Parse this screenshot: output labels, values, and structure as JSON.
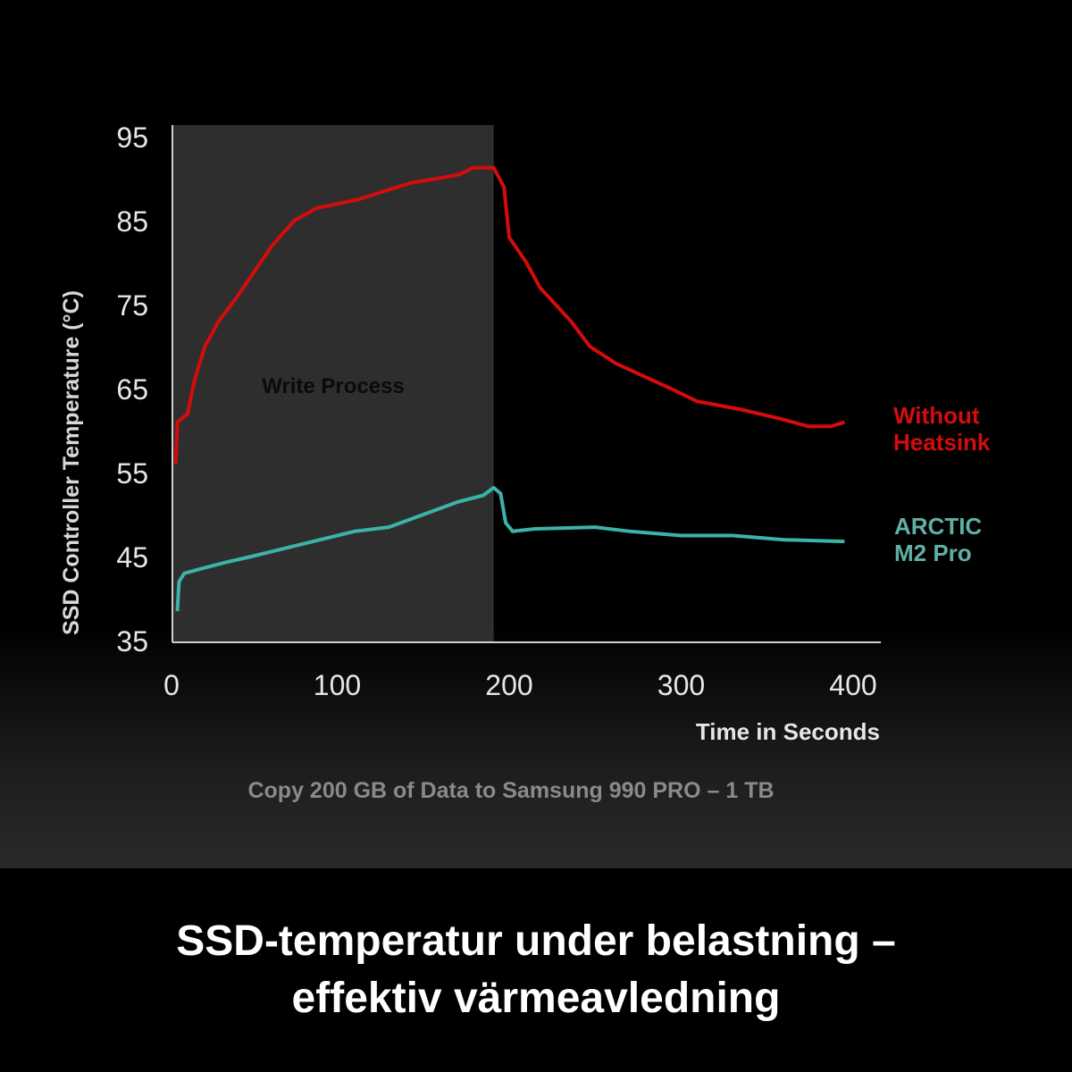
{
  "chart_data": {
    "type": "line",
    "xlabel": "Time in Seconds",
    "ylabel": "SSD Controller Temperature (°C)",
    "subtitle": "Copy 200 GB of Data to Samsung 990 PRO  – 1 TB",
    "xlim": [
      0,
      400
    ],
    "ylim": [
      35,
      95
    ],
    "x_ticks": [
      "0",
      "100",
      "200",
      "300",
      "400"
    ],
    "y_ticks": [
      "35",
      "45",
      "55",
      "65",
      "75",
      "85",
      "95"
    ],
    "grid": false,
    "shaded_region": {
      "label": "Write Process",
      "x_range": [
        0,
        191
      ],
      "color": "#2e2e2e"
    },
    "series": [
      {
        "name": "Without Heatsink",
        "color": "#d40c0c",
        "points": [
          [
            6,
            56
          ],
          [
            7,
            61
          ],
          [
            13,
            62
          ],
          [
            17,
            66
          ],
          [
            23,
            70
          ],
          [
            31,
            73
          ],
          [
            42,
            76
          ],
          [
            52,
            79
          ],
          [
            62,
            82
          ],
          [
            75,
            85
          ],
          [
            88,
            86.5
          ],
          [
            112,
            87.5
          ],
          [
            127,
            88.5
          ],
          [
            143,
            89.5
          ],
          [
            158,
            90
          ],
          [
            171,
            90.5
          ],
          [
            179,
            91.3
          ],
          [
            191,
            91.3
          ],
          [
            197,
            89
          ],
          [
            200,
            83
          ],
          [
            210,
            80
          ],
          [
            218,
            77
          ],
          [
            236,
            73
          ],
          [
            247,
            70
          ],
          [
            262,
            68
          ],
          [
            278,
            66.5
          ],
          [
            294,
            65
          ],
          [
            309,
            63.5
          ],
          [
            335,
            62.5
          ],
          [
            356,
            61.5
          ],
          [
            374,
            60.5
          ],
          [
            387,
            60.5
          ],
          [
            395,
            61
          ]
        ]
      },
      {
        "name": "ARCTIC M2 Pro",
        "color": "#3bb3a8",
        "points": [
          [
            7,
            38.5
          ],
          [
            8,
            42
          ],
          [
            11,
            43
          ],
          [
            20,
            43.5
          ],
          [
            35,
            44.3
          ],
          [
            50,
            45
          ],
          [
            70,
            46
          ],
          [
            90,
            47
          ],
          [
            110,
            48
          ],
          [
            130,
            48.5
          ],
          [
            150,
            50
          ],
          [
            170,
            51.5
          ],
          [
            185,
            52.3
          ],
          [
            191,
            53.2
          ],
          [
            195,
            52.5
          ],
          [
            198,
            49
          ],
          [
            202,
            48
          ],
          [
            215,
            48.3
          ],
          [
            250,
            48.5
          ],
          [
            270,
            48
          ],
          [
            300,
            47.5
          ],
          [
            330,
            47.5
          ],
          [
            360,
            47
          ],
          [
            395,
            46.8
          ]
        ]
      }
    ],
    "legend": {
      "placement": "right",
      "labels": [
        [
          "Without",
          "Heatsink"
        ],
        [
          "ARCTIC",
          "M2 Pro"
        ]
      ]
    }
  },
  "caption": {
    "line1": "SSD-temperatur under belastning –",
    "line2": "effektiv värmeavledning"
  }
}
